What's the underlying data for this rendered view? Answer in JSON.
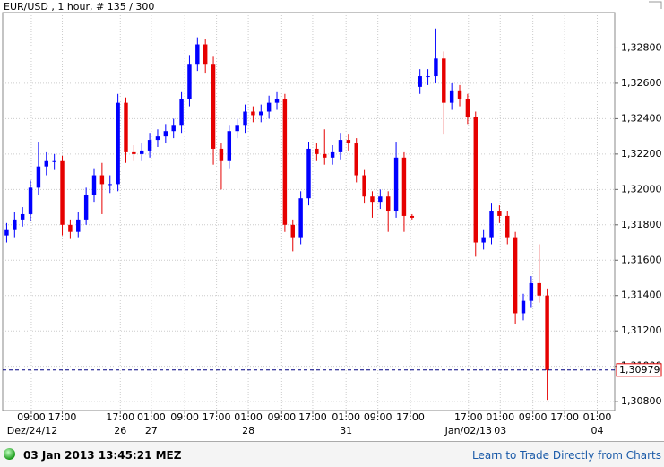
{
  "chart_data": {
    "type": "candlestick",
    "title": "EUR/USD , 1 hour, # 135 / 300",
    "up_color": "#0000ff",
    "down_color": "#e60000",
    "grid": true,
    "ylim": [
      1.3075,
      1.33
    ],
    "yticks": [
      {
        "value": 1.308,
        "label": "1,30800"
      },
      {
        "value": 1.31,
        "label": "1,31000"
      },
      {
        "value": 1.312,
        "label": "1,31200"
      },
      {
        "value": 1.314,
        "label": "1,31400"
      },
      {
        "value": 1.316,
        "label": "1,31600"
      },
      {
        "value": 1.318,
        "label": "1,31800"
      },
      {
        "value": 1.32,
        "label": "1,32000"
      },
      {
        "value": 1.322,
        "label": "1,32200"
      },
      {
        "value": 1.324,
        "label": "1,32400"
      },
      {
        "value": 1.326,
        "label": "1,32600"
      },
      {
        "value": 1.328,
        "label": "1,32800"
      }
    ],
    "xlim": [
      -0.5,
      76.5
    ],
    "xticks": [
      {
        "value": 3.1,
        "label": "09:00"
      },
      {
        "value": 7,
        "label": "17:00"
      },
      {
        "value": 14.3,
        "label": "17:00"
      },
      {
        "value": 18.2,
        "label": "01:00"
      },
      {
        "value": 22.4,
        "label": "09:00"
      },
      {
        "value": 26.4,
        "label": "17:00"
      },
      {
        "value": 30.4,
        "label": "01:00"
      },
      {
        "value": 34.6,
        "label": "09:00"
      },
      {
        "value": 38.5,
        "label": "17:00"
      },
      {
        "value": 42.7,
        "label": "01:00"
      },
      {
        "value": 46.7,
        "label": "09:00"
      },
      {
        "value": 50.8,
        "label": "17:00"
      },
      {
        "value": 58.1,
        "label": "17:00"
      },
      {
        "value": 62.1,
        "label": "01:00"
      },
      {
        "value": 66.2,
        "label": "09:00"
      },
      {
        "value": 70.2,
        "label": "17:00"
      },
      {
        "value": 74.3,
        "label": "01:00"
      }
    ],
    "xtick_dates": [
      {
        "value": 2,
        "label": "Dez/24/12"
      },
      {
        "value": 14.3,
        "label": "26"
      },
      {
        "value": 18.2,
        "label": "27"
      },
      {
        "value": 30.4,
        "label": "28"
      },
      {
        "value": 42.7,
        "label": "31"
      },
      {
        "value": 58.1,
        "label": "Jan/02/13"
      },
      {
        "value": 62.1,
        "label": "03"
      },
      {
        "value": 74.3,
        "label": "04"
      }
    ],
    "current": {
      "value": 1.30979,
      "label": "1,30979"
    },
    "open": [
      1.3174,
      1.3177,
      1.3183,
      1.3186,
      1.3201,
      1.3213,
      1.3216,
      1.3216,
      1.318,
      1.3176,
      1.3183,
      1.3197,
      1.3208,
      1.3203,
      1.3203,
      1.3249,
      1.3221,
      1.322,
      1.3222,
      1.3228,
      1.323,
      1.3233,
      1.3236,
      1.3251,
      1.3271,
      1.3282,
      1.3271,
      1.3223,
      1.3216,
      1.3233,
      1.3236,
      1.3244,
      1.3242,
      1.3244,
      1.3249,
      1.3251,
      1.318,
      1.3173,
      1.3195,
      1.3223,
      1.322,
      1.3218,
      1.3221,
      1.3228,
      1.3226,
      1.3208,
      1.3196,
      1.3193,
      1.3196,
      1.3188,
      1.3218,
      1.3185,
      1.3258,
      1.3264,
      1.3264,
      1.3274,
      1.3249,
      1.3256,
      1.3251,
      1.3241,
      1.317,
      1.3173,
      1.3188,
      1.3185,
      1.3173,
      1.313,
      1.3137,
      1.3147,
      1.314
    ],
    "high": [
      1.3181,
      1.3187,
      1.319,
      1.3205,
      1.3227,
      1.3221,
      1.322,
      1.3219,
      1.3183,
      1.3187,
      1.3201,
      1.3212,
      1.3215,
      1.3208,
      1.3254,
      1.3252,
      1.3225,
      1.3226,
      1.3232,
      1.3234,
      1.3237,
      1.324,
      1.3255,
      1.3276,
      1.3286,
      1.3285,
      1.3275,
      1.3226,
      1.3236,
      1.324,
      1.3248,
      1.3247,
      1.3248,
      1.3253,
      1.3255,
      1.3254,
      1.3183,
      1.3199,
      1.3227,
      1.3226,
      1.3234,
      1.3225,
      1.3232,
      1.3231,
      1.3229,
      1.3211,
      1.3199,
      1.32,
      1.3199,
      1.3227,
      1.3221,
      1.3186,
      1.3268,
      1.3268,
      1.3291,
      1.3278,
      1.326,
      1.3259,
      1.3254,
      1.3244,
      1.3177,
      1.3192,
      1.3191,
      1.3188,
      1.3176,
      1.3141,
      1.3151,
      1.3169,
      1.3144
    ],
    "low": [
      1.317,
      1.3173,
      1.3179,
      1.3182,
      1.3197,
      1.3208,
      1.3211,
      1.3174,
      1.3172,
      1.3173,
      1.318,
      1.3193,
      1.3186,
      1.3198,
      1.3199,
      1.3215,
      1.3216,
      1.3216,
      1.3218,
      1.3224,
      1.3226,
      1.3229,
      1.3232,
      1.3247,
      1.3267,
      1.3266,
      1.3214,
      1.32,
      1.3212,
      1.3229,
      1.3232,
      1.3238,
      1.3238,
      1.324,
      1.3245,
      1.3176,
      1.3165,
      1.3169,
      1.3191,
      1.3216,
      1.3214,
      1.3214,
      1.3217,
      1.3222,
      1.3204,
      1.3192,
      1.3184,
      1.3189,
      1.3176,
      1.3184,
      1.3176,
      1.3183,
      1.3254,
      1.3259,
      1.326,
      1.3231,
      1.3245,
      1.3247,
      1.3237,
      1.3162,
      1.3166,
      1.3169,
      1.3181,
      1.3169,
      1.3124,
      1.3126,
      1.3133,
      1.3136,
      1.3081
    ],
    "close": [
      1.3177,
      1.3183,
      1.3186,
      1.3201,
      1.3213,
      1.3216,
      1.3216,
      1.318,
      1.3176,
      1.3183,
      1.3197,
      1.3208,
      1.3203,
      1.3203,
      1.3249,
      1.3221,
      1.322,
      1.3222,
      1.3228,
      1.323,
      1.3233,
      1.3236,
      1.3251,
      1.3271,
      1.3282,
      1.3271,
      1.3223,
      1.3216,
      1.3233,
      1.3236,
      1.3244,
      1.3242,
      1.3244,
      1.3249,
      1.3251,
      1.318,
      1.3173,
      1.3195,
      1.3223,
      1.322,
      1.3218,
      1.3221,
      1.3228,
      1.3226,
      1.3208,
      1.3196,
      1.3193,
      1.3196,
      1.3188,
      1.3218,
      1.3185,
      1.3184,
      1.3264,
      1.3264,
      1.3274,
      1.3249,
      1.3256,
      1.3251,
      1.3241,
      1.317,
      1.3173,
      1.3188,
      1.3185,
      1.3173,
      1.313,
      1.3137,
      1.3147,
      1.314,
      1.30979
    ]
  },
  "footer": {
    "timestamp": "03 Jan 2013 13:45:21 MEZ",
    "link": "Learn to Trade Directly from Charts"
  }
}
